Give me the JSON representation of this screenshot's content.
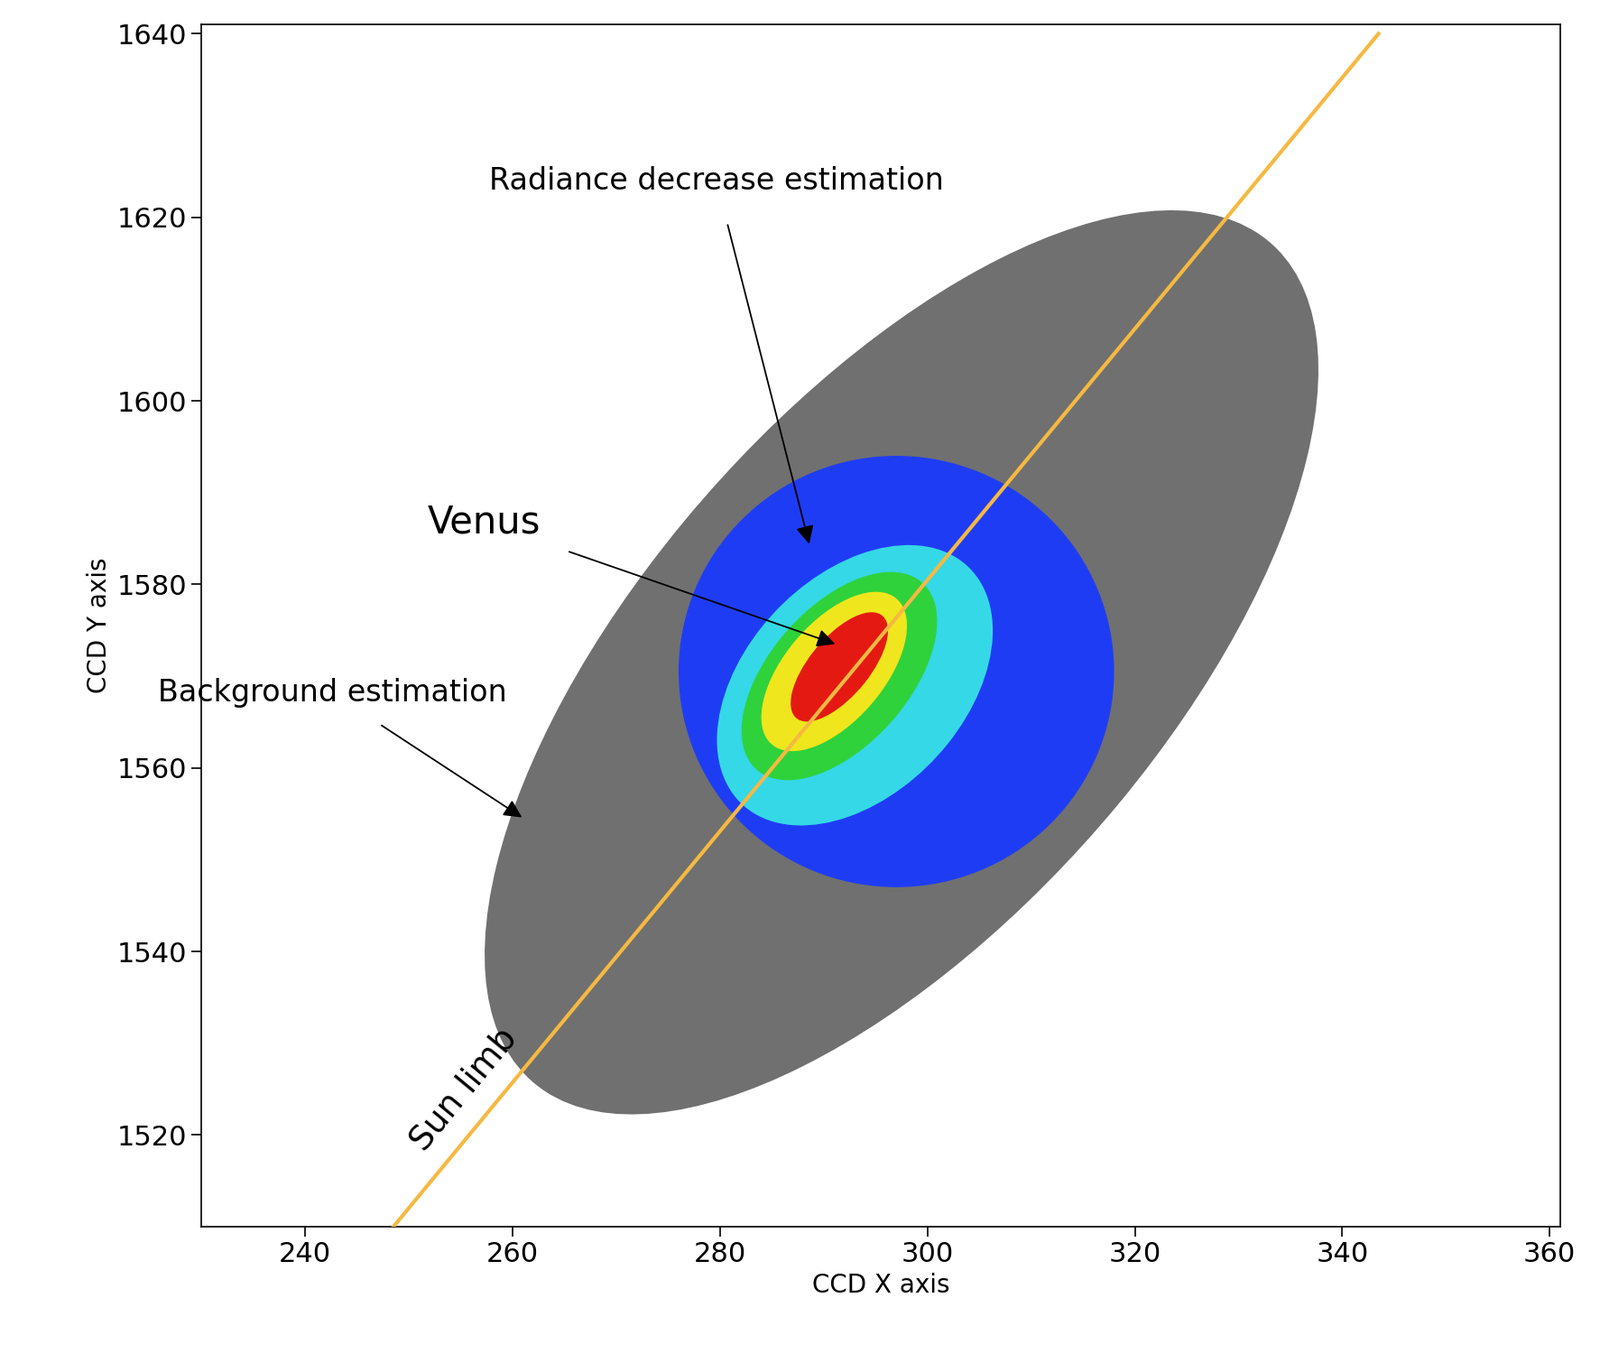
{
  "chart_data": {
    "type": "image",
    "xlabel": "CCD X axis",
    "ylabel": "CCD Y axis",
    "xlim": [
      230,
      361
    ],
    "ylim": [
      1510,
      1641
    ],
    "xticks": [
      240,
      260,
      280,
      300,
      320,
      340,
      360
    ],
    "yticks": [
      1520,
      1540,
      1560,
      1580,
      1600,
      1620,
      1640
    ],
    "grid": false,
    "regions": [
      {
        "axis": [
          [
            263.2,
            1524.7
          ],
          [
            331.8,
            1618.3
          ]
        ],
        "minor": 52,
        "color": "#707070"
      },
      {
        "axis": [
          [
            297,
            1547
          ],
          [
            297,
            1594
          ]
        ],
        "minor": 42,
        "color": "#1f3cf5"
      },
      {
        "axis": [
          [
            283.2,
            1555.1
          ],
          [
            302.8,
            1582.9
          ]
        ],
        "minor": 22,
        "color": "#35d8e6"
      },
      {
        "axis": [
          [
            284,
            1559.4
          ],
          [
            299,
            1580.6
          ]
        ],
        "minor": 14,
        "color": "#2fd23a"
      },
      {
        "axis": [
          [
            285.3,
            1562.3
          ],
          [
            296.7,
            1578.7
          ]
        ],
        "minor": 10,
        "color": "#f0e61e"
      },
      {
        "axis": [
          [
            287.5,
            1565.3
          ],
          [
            295.5,
            1576.7
          ]
        ],
        "minor": 6,
        "color": "#e41a12"
      }
    ],
    "sun_limb": {
      "text": "Sun limb",
      "x": [
        248.5,
        343.5
      ],
      "y": [
        1510,
        1640
      ],
      "color": "#f5b942"
    },
    "annotations": [
      {
        "text": "Radiance decrease estimation",
        "xy": [
          288.6,
          1584.4
        ]
      },
      {
        "text": "Venus",
        "xy": [
          291.1,
          1573.5
        ]
      },
      {
        "text": "Background estimation",
        "xy": [
          260.9,
          1554.6
        ]
      }
    ]
  }
}
